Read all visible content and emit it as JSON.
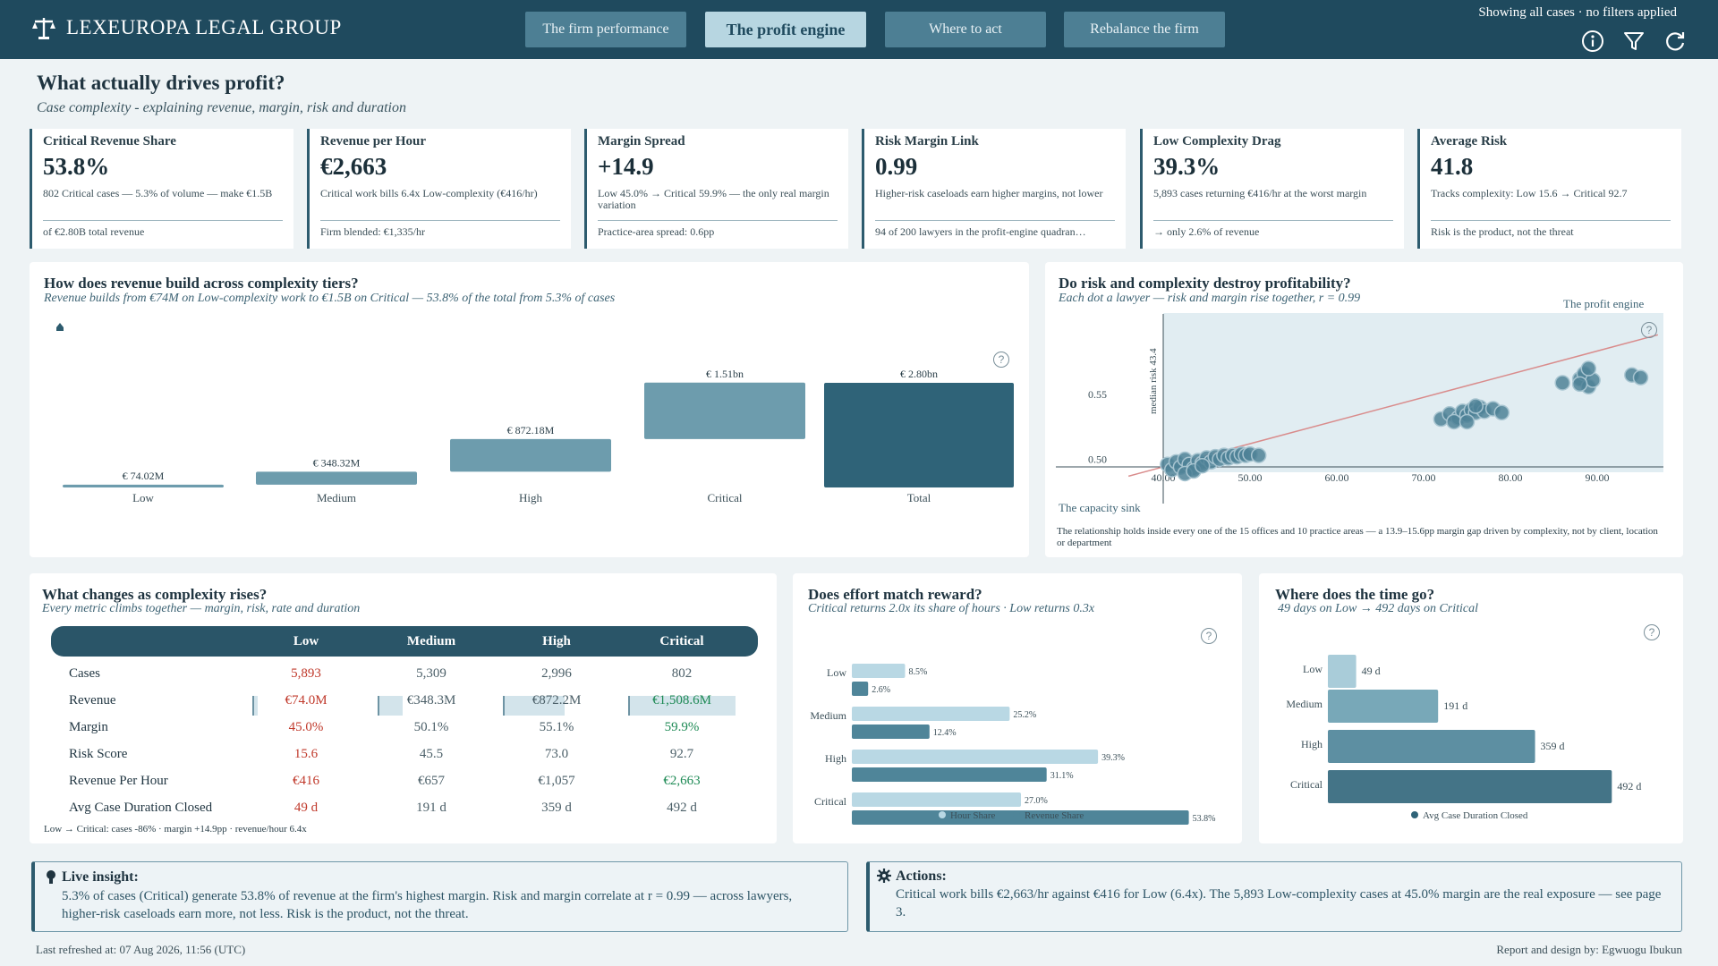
{
  "brand": {
    "name": "LEXEUROPA LEGAL GROUP"
  },
  "tabs": [
    "The firm performance",
    "The profit engine",
    "Where to act",
    "Rebalance the firm"
  ],
  "filters_text": "Showing all cases · no filters applied",
  "page": {
    "title": "What actually drives profit?",
    "subtitle": "Case complexity - explaining revenue, margin, risk and duration"
  },
  "kpis": [
    {
      "label": "Critical Revenue Share",
      "value": "53.8%",
      "desc": "802 Critical cases — 5.3% of volume — make €1.5B",
      "foot": "of €2.80B total revenue"
    },
    {
      "label": "Revenue per Hour",
      "value": "€2,663",
      "desc": "Critical work bills 6.4x Low-complexity (€416/hr)",
      "foot": "Firm blended: €1,335/hr"
    },
    {
      "label": "Margin Spread",
      "value": "+14.9",
      "desc": "Low 45.0% → Critical 59.9% — the only real margin variation",
      "foot": "Practice-area spread: 0.6pp"
    },
    {
      "label": "Risk Margin Link",
      "value": "0.99",
      "desc": "Higher-risk caseloads earn higher margins, not lower",
      "foot": "94 of 200 lawyers in the profit-engine quadran…"
    },
    {
      "label": "Low Complexity Drag",
      "value": "39.3%",
      "desc": "5,893 cases returning €416/hr at the worst margin",
      "foot": "→ only 2.6% of revenue"
    },
    {
      "label": "Average Risk",
      "value": "41.8",
      "desc": "Tracks complexity: Low 15.6 → Critical 92.7",
      "foot": "Risk is the product, not the threat"
    }
  ],
  "revenue_panel": {
    "title": "How does revenue build across complexity tiers?",
    "subtitle": "Revenue builds from €74M on Low-complexity work to €1.5B on Critical — 53.8% of the total from 5.3% of cases"
  },
  "scatter_panel": {
    "title": "Do risk and complexity destroy profitability?",
    "subtitle": "Each dot a lawyer — risk and margin rise together, r = 0.99",
    "label_top": "The profit engine",
    "label_bottom": "The capacity sink",
    "note": "The relationship holds inside every one of the 15 offices and 10 practice areas — a 13.9–15.6pp margin gap driven by complexity, not by client, location or department"
  },
  "table_panel": {
    "title": "What changes as complexity rises?",
    "subtitle": "Every metric climbs together — margin, risk, rate and duration",
    "columns": [
      "Low",
      "Medium",
      "High",
      "Critical"
    ],
    "rows": [
      {
        "label": "Cases",
        "values": [
          "5,893",
          "5,309",
          "2,996",
          "802"
        ]
      },
      {
        "label": "Revenue",
        "values": [
          "€74.0M",
          "€348.3M",
          "€872.2M",
          "€1,508.6M"
        ]
      },
      {
        "label": "Margin",
        "values": [
          "45.0%",
          "50.1%",
          "55.1%",
          "59.9%"
        ]
      },
      {
        "label": "Risk Score",
        "values": [
          "15.6",
          "45.5",
          "73.0",
          "92.7"
        ]
      },
      {
        "label": "Revenue Per Hour",
        "values": [
          "€416",
          "€657",
          "€1,057",
          "€2,663"
        ]
      },
      {
        "label": "Avg Case Duration Closed",
        "values": [
          "49 d",
          "191 d",
          "359 d",
          "492 d"
        ]
      }
    ],
    "footnote": "Low → Critical: cases -86% · margin +14.9pp · revenue/hour 6.4x"
  },
  "effort_panel": {
    "title": "Does effort match reward?",
    "subtitle": "Critical returns 2.0x its share of hours · Low returns 0.3x"
  },
  "time_panel": {
    "title": "Where does the time go?",
    "subtitle": "49 days on Low → 492 days on Critical"
  },
  "insight": {
    "title": "Live insight:",
    "text": "5.3% of cases (Critical) generate 53.8% of revenue at the firm's highest margin. Risk and margin correlate at r = 0.99 — across lawyers, higher-risk caseloads earn more, not less. Risk is the product, not the threat."
  },
  "actions": {
    "title": "Actions:",
    "text": "Critical work bills €2,663/hr against €416 for Low (6.4x). The 5,893 Low-complexity cases at 45.0% margin are the real exposure — see page 3."
  },
  "footer": {
    "refreshed": "Last refreshed at: 07 Aug 2026, 11:56 (UTC)",
    "credit": "Report and design by: Egwuogu Ibukun"
  },
  "colors": {
    "header": "#1f4a5e",
    "accent": "#2d5b6e",
    "light": "#a9ccd9",
    "positive": "#1e8a55",
    "negative": "#c0392b"
  },
  "chart_data": [
    {
      "type": "bar",
      "subtype": "waterfall",
      "categories": [
        "Low",
        "Medium",
        "High",
        "Critical",
        "Total"
      ],
      "values": [
        74.02,
        348.32,
        872.18,
        1510,
        2800
      ],
      "value_labels": [
        "€ 74.02M",
        "€ 348.32M",
        "€ 872.18M",
        "€ 1.51bn",
        "€ 2.80bn"
      ],
      "unit": "€M"
    },
    {
      "type": "scatter",
      "xlabel": "",
      "ylabel": "median risk 43.4",
      "x_ticks": [
        "40.00",
        "50.00",
        "60.00",
        "70.00",
        "80.00",
        "90.00"
      ],
      "y_ticks": [
        "0.50",
        "0.55"
      ],
      "xlim": [
        40,
        95
      ],
      "ylim": [
        0.49,
        0.6
      ],
      "trend": [
        [
          36,
          0.487
        ],
        [
          97,
          0.596
        ]
      ],
      "points": [
        [
          40.5,
          0.496
        ],
        [
          41,
          0.492
        ],
        [
          41.5,
          0.498
        ],
        [
          42,
          0.494
        ],
        [
          42.5,
          0.5
        ],
        [
          43,
          0.496
        ],
        [
          43.5,
          0.493
        ],
        [
          44,
          0.499
        ],
        [
          44.5,
          0.497
        ],
        [
          45,
          0.501
        ],
        [
          45.5,
          0.498
        ],
        [
          46,
          0.502
        ],
        [
          46.5,
          0.5
        ],
        [
          47,
          0.503
        ],
        [
          47.5,
          0.501
        ],
        [
          48,
          0.503
        ],
        [
          48.5,
          0.502
        ],
        [
          49,
          0.504
        ],
        [
          49.5,
          0.503
        ],
        [
          50,
          0.504
        ],
        [
          51,
          0.503
        ],
        [
          42.5,
          0.489
        ],
        [
          43.5,
          0.491
        ],
        [
          44.5,
          0.495
        ],
        [
          72,
          0.531
        ],
        [
          73,
          0.535
        ],
        [
          74,
          0.532
        ],
        [
          74.5,
          0.537
        ],
        [
          75,
          0.534
        ],
        [
          75.5,
          0.538
        ],
        [
          76,
          0.536
        ],
        [
          76.5,
          0.54
        ],
        [
          77,
          0.537
        ],
        [
          78,
          0.539
        ],
        [
          79,
          0.536
        ],
        [
          73.5,
          0.529
        ],
        [
          75,
          0.529
        ],
        [
          76,
          0.541
        ],
        [
          86,
          0.559
        ],
        [
          88,
          0.562
        ],
        [
          89,
          0.556
        ],
        [
          88.5,
          0.566
        ],
        [
          89.5,
          0.561
        ],
        [
          88,
          0.558
        ],
        [
          89,
          0.57
        ],
        [
          94,
          0.565
        ],
        [
          95,
          0.563
        ]
      ]
    },
    {
      "type": "bar",
      "orientation": "horizontal",
      "categories": [
        "Low",
        "Medium",
        "High",
        "Critical"
      ],
      "series": [
        {
          "name": "Hour Share",
          "values": [
            8.5,
            25.2,
            39.3,
            27.0
          ],
          "labels": [
            "8.5%",
            "25.2%",
            "39.3%",
            "27.0%"
          ]
        },
        {
          "name": "Revenue Share",
          "values": [
            2.6,
            12.4,
            31.1,
            53.8
          ],
          "labels": [
            "2.6%",
            "12.4%",
            "31.1%",
            "53.8%"
          ]
        }
      ],
      "xlim": [
        0,
        55
      ]
    },
    {
      "type": "bar",
      "orientation": "horizontal",
      "categories": [
        "Low",
        "Medium",
        "High",
        "Critical"
      ],
      "series": [
        {
          "name": "Avg Case Duration Closed",
          "values": [
            49,
            191,
            359,
            492
          ],
          "labels": [
            "49 d",
            "191 d",
            "359 d",
            "492 d"
          ]
        }
      ],
      "xlim": [
        0,
        500
      ]
    }
  ]
}
